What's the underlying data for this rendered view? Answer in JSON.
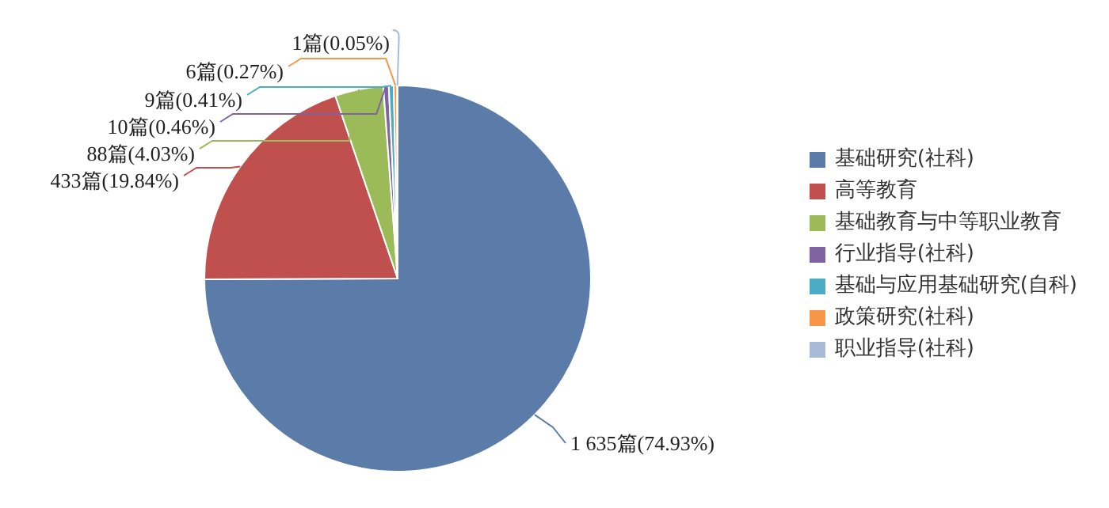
{
  "chart_data": {
    "type": "pie",
    "categories": [
      "基础研究(社科)",
      "高等教育",
      "基础教育与中等职业教育",
      "行业指导(社科)",
      "基础与应用基础研究(自科)",
      "政策研究(社科)",
      "职业指导(社科)"
    ],
    "values": [
      1635,
      433,
      88,
      10,
      9,
      6,
      1
    ],
    "value_labels": [
      "1 635篇(74.93%)",
      "433篇(19.84%)",
      "88篇(4.03%)",
      "10篇(0.46%)",
      "9篇(0.41%)",
      "6篇(0.27%)",
      "1篇(0.05%)"
    ],
    "colors": [
      "#5b7ba8",
      "#c0504d",
      "#9bbb59",
      "#8064a2",
      "#4bacc6",
      "#f79646",
      "#a9b9d8"
    ],
    "legend": "right"
  }
}
